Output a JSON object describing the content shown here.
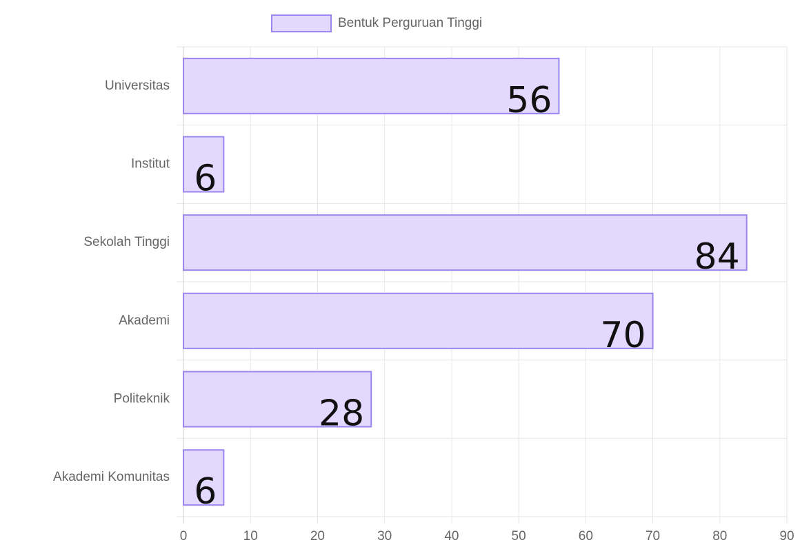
{
  "chart_data": {
    "type": "bar",
    "orientation": "horizontal",
    "categories": [
      "Universitas",
      "Institut",
      "Sekolah Tinggi",
      "Akademi",
      "Politeknik",
      "Akademi Komunitas"
    ],
    "series": [
      {
        "name": "Bentuk Perguruan Tinggi",
        "color": "#e3d9ff",
        "border_color": "#9a86ee",
        "values": [
          56,
          6,
          84,
          70,
          28,
          6
        ]
      }
    ],
    "xlim": [
      0,
      90
    ],
    "xticks": [
      0,
      10,
      20,
      30,
      40,
      50,
      60,
      70,
      80,
      90
    ],
    "grid": true,
    "legend": "top"
  }
}
